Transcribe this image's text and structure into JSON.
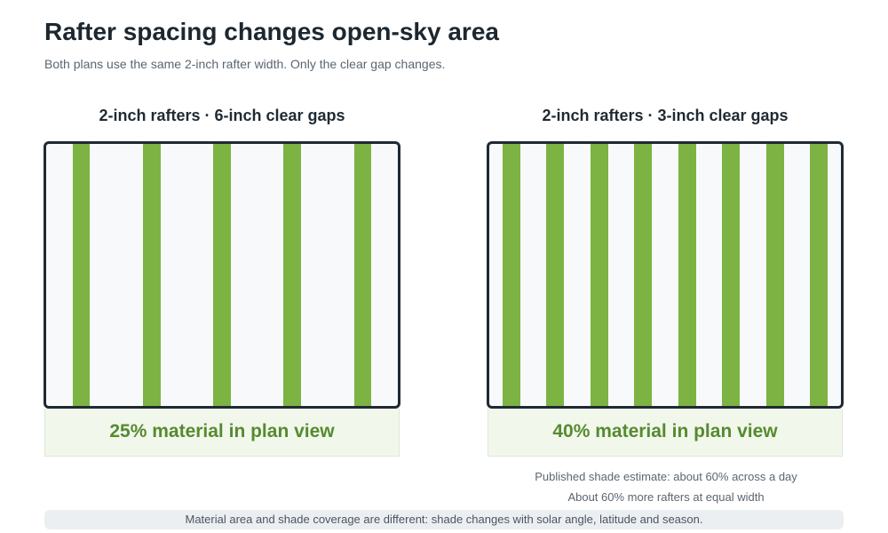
{
  "header": {
    "title": "Rafter spacing changes open-sky area",
    "subtitle": "Both plans use the same 2-inch rafter width. Only the clear gap changes."
  },
  "colors": {
    "rafter": "#7cb342",
    "frame": "#1f2a33",
    "open_sky": "#f7f9fb",
    "percent_text": "#558b2f",
    "percent_box": "#f2f7ec"
  },
  "panels": [
    {
      "heading": "2-inch rafters · 6-inch clear gaps",
      "rafter_width_in": 2,
      "gap_in": 6,
      "rafter_count": 5,
      "material_fraction": 0.25,
      "percent_label": "25% material in plan view"
    },
    {
      "heading": "2-inch rafters · 3-inch clear gaps",
      "rafter_width_in": 2,
      "gap_in": 3,
      "rafter_count": 8,
      "material_fraction": 0.4,
      "percent_label": "40% material in plan view"
    }
  ],
  "notes": {
    "shade_estimate": "Published shade estimate: about 60% across a day",
    "rafter_count_note": "About 60% more rafters at equal width"
  },
  "footer": {
    "text": "Material area and shade coverage are different: shade changes with solar angle, latitude and season."
  }
}
